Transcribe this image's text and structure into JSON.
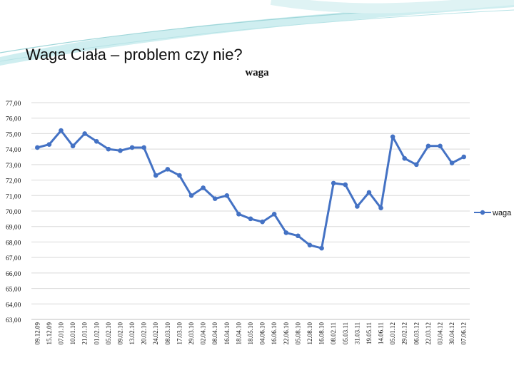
{
  "slide": {
    "title": "Waga Ciała – problem czy nie?"
  },
  "colors": {
    "series": "#4472C4",
    "grid": "#d9d9d9",
    "axis": "#bfbfbf",
    "text": "#111111",
    "swoosh": "#9fd6d9"
  },
  "chart_data": {
    "type": "line",
    "title": "waga",
    "legend_position": "right",
    "grid": true,
    "ylim": [
      63,
      77
    ],
    "y_ticks": [
      "63,00",
      "64,00",
      "65,00",
      "66,00",
      "67,00",
      "68,00",
      "69,00",
      "70,00",
      "71,00",
      "72,00",
      "73,00",
      "74,00",
      "75,00",
      "76,00",
      "77,00"
    ],
    "categories": [
      "09.12.09",
      "15.12.09",
      "07.01.10",
      "10.01.10",
      "21.01.10",
      "01.02.10",
      "05.02.10",
      "09.02.10",
      "13.02.10",
      "20.02.10",
      "24.02.10",
      "08.03.10",
      "17.03.10",
      "29.03.10",
      "02.04.10",
      "08.04.10",
      "16.04.10",
      "18.04.10",
      "18.05.10",
      "04.06.10",
      "16.06.10",
      "22.06.10",
      "05.08.10",
      "12.08.10",
      "16.08.10",
      "08.02.11",
      "05.03.11",
      "31.03.11",
      "19.05.11",
      "14.06.11",
      "05.01.12",
      "29.02.12",
      "06.03.12",
      "22.03.12",
      "03.04.12",
      "30.04.12",
      "07.06.12"
    ],
    "series": [
      {
        "name": "waga",
        "values": [
          74.1,
          74.3,
          75.2,
          74.2,
          75.0,
          74.5,
          74.0,
          73.9,
          74.1,
          74.1,
          72.3,
          72.7,
          72.3,
          71.0,
          71.5,
          70.8,
          71.0,
          69.8,
          69.5,
          69.3,
          69.8,
          68.6,
          68.4,
          67.8,
          67.6,
          71.8,
          71.7,
          70.3,
          71.2,
          70.2,
          74.8,
          73.4,
          73.0,
          74.2,
          74.2,
          73.1,
          73.5
        ]
      }
    ]
  }
}
